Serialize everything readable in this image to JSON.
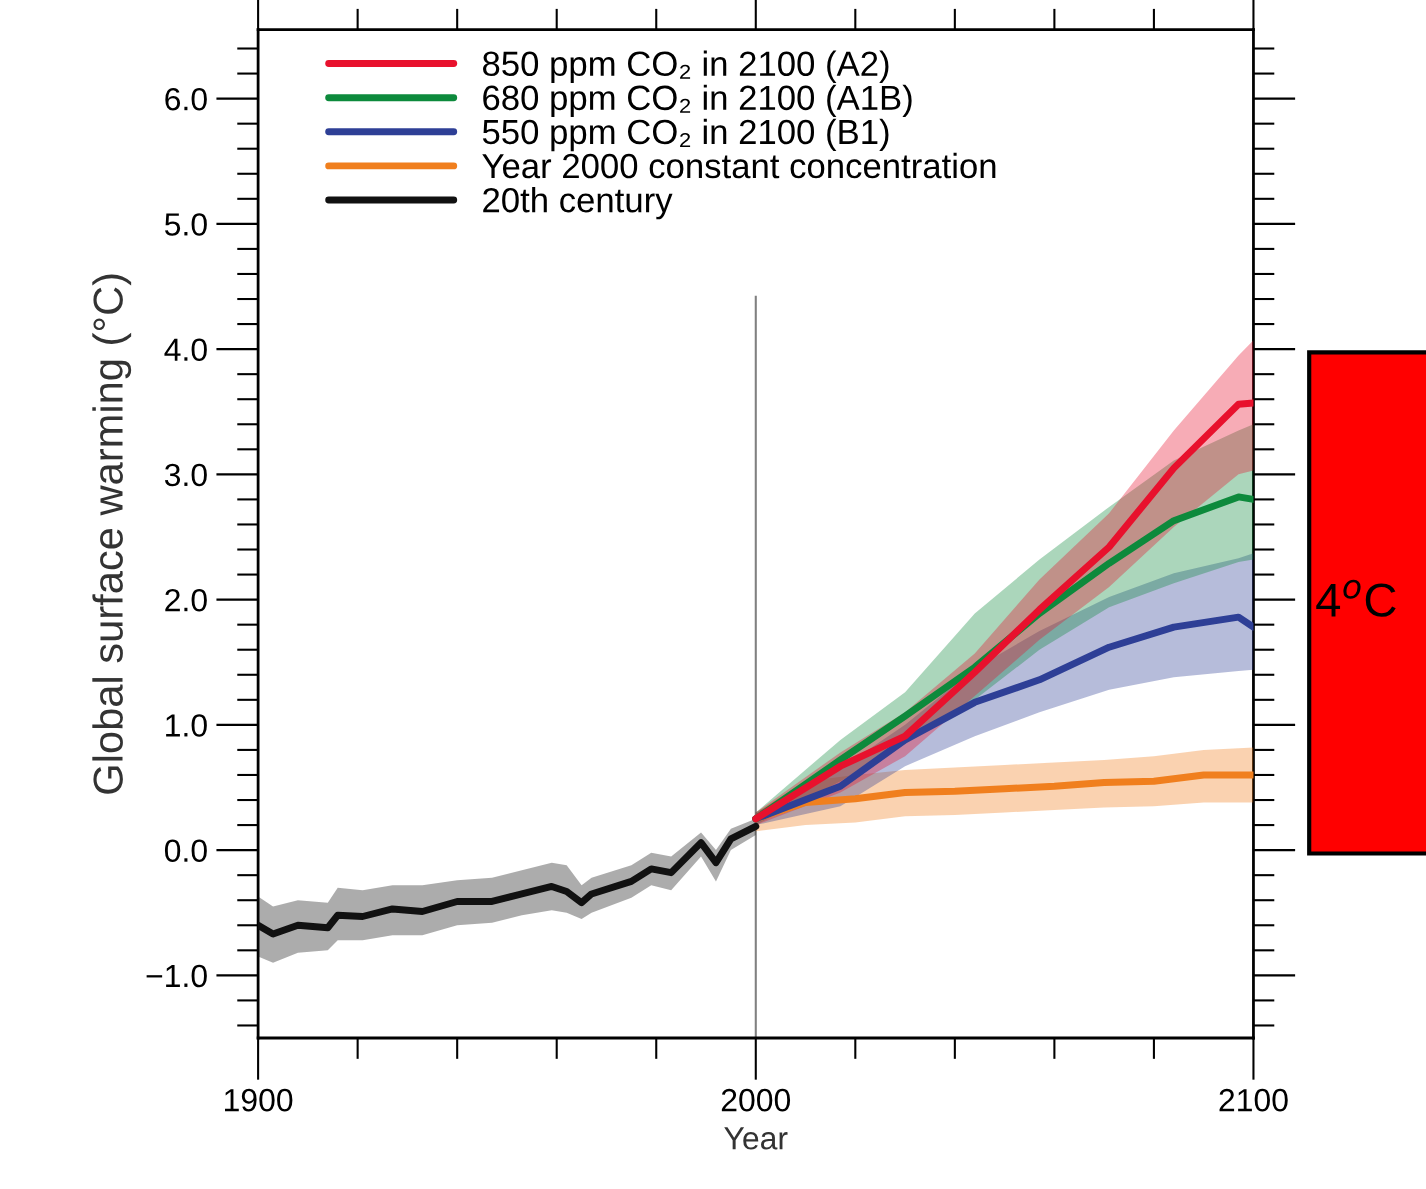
{
  "chart_data": {
    "type": "line",
    "xlabel": "Year",
    "ylabel": "Global surface warming (°C)",
    "xlim": [
      1900,
      2100
    ],
    "ylim": [
      -1.5,
      6.55
    ],
    "xticks": [
      1900,
      2000,
      2100
    ],
    "yticks": [
      {
        "value": -1.0,
        "label": "−1.0"
      },
      {
        "value": 0.0,
        "label": "0.0"
      },
      {
        "value": 1.0,
        "label": "1.0"
      },
      {
        "value": 2.0,
        "label": "2.0"
      },
      {
        "value": 3.0,
        "label": "3.0"
      },
      {
        "value": 4.0,
        "label": "4.0"
      },
      {
        "value": 5.0,
        "label": "5.0"
      },
      {
        "value": 6.0,
        "label": "6.0"
      }
    ],
    "grid": false,
    "legend": "top left",
    "marker": "none",
    "line_style": "solid",
    "series": [
      {
        "name": "850 ppm CO₂ in 2100 (A2)",
        "color": "#e8112d",
        "x": [
          2000,
          2017,
          2030,
          2044,
          2057,
          2071,
          2084,
          2097,
          2100
        ],
        "values": [
          0.25,
          0.67,
          0.91,
          1.42,
          1.92,
          2.42,
          3.05,
          3.56,
          3.57
        ],
        "lower": [
          0.2,
          0.46,
          0.75,
          1.23,
          1.68,
          2.1,
          2.58,
          3.0,
          3.03
        ],
        "upper": [
          0.3,
          0.78,
          1.1,
          1.57,
          2.16,
          2.69,
          3.35,
          3.95,
          4.07
        ]
      },
      {
        "name": "680 ppm CO₂ in 2100 (A1B)",
        "color": "#0d8a3c",
        "x": [
          2000,
          2017,
          2030,
          2044,
          2057,
          2071,
          2084,
          2097,
          2100
        ],
        "values": [
          0.25,
          0.72,
          1.07,
          1.46,
          1.89,
          2.29,
          2.63,
          2.82,
          2.8
        ],
        "lower": [
          0.2,
          0.55,
          0.85,
          1.2,
          1.6,
          1.94,
          2.13,
          2.3,
          2.32
        ],
        "upper": [
          0.3,
          0.88,
          1.26,
          1.89,
          2.32,
          2.74,
          3.11,
          3.35,
          3.4
        ]
      },
      {
        "name": "550 ppm CO₂ in 2100 (B1)",
        "color": "#2e3f96",
        "x": [
          2000,
          2017,
          2030,
          2044,
          2057,
          2071,
          2084,
          2097,
          2100
        ],
        "values": [
          0.25,
          0.51,
          0.88,
          1.18,
          1.36,
          1.62,
          1.78,
          1.86,
          1.78
        ],
        "lower": [
          0.2,
          0.35,
          0.67,
          0.91,
          1.1,
          1.28,
          1.38,
          1.43,
          1.44
        ],
        "upper": [
          0.3,
          0.65,
          1.0,
          1.45,
          1.75,
          2.02,
          2.21,
          2.33,
          2.37
        ]
      },
      {
        "name": "Year 2000 constant concentration",
        "color": "#f07f1e",
        "x": [
          2000,
          2010,
          2020,
          2030,
          2040,
          2050,
          2060,
          2070,
          2080,
          2090,
          2100
        ],
        "values": [
          0.25,
          0.38,
          0.41,
          0.46,
          0.47,
          0.49,
          0.51,
          0.54,
          0.55,
          0.6,
          0.6
        ],
        "lower": [
          0.15,
          0.2,
          0.22,
          0.27,
          0.28,
          0.3,
          0.32,
          0.34,
          0.35,
          0.38,
          0.38
        ],
        "upper": [
          0.3,
          0.55,
          0.6,
          0.64,
          0.66,
          0.68,
          0.7,
          0.72,
          0.75,
          0.8,
          0.82
        ]
      },
      {
        "name": "20th century",
        "color": "#111111",
        "x": [
          1900,
          1903,
          1908,
          1914,
          1916,
          1921,
          1927,
          1933,
          1940,
          1947,
          1953,
          1959,
          1962,
          1965,
          1967,
          1975,
          1979,
          1983,
          1989,
          1992,
          1995,
          2000
        ],
        "values": [
          -0.6,
          -0.67,
          -0.6,
          -0.62,
          -0.52,
          -0.53,
          -0.47,
          -0.49,
          -0.41,
          -0.41,
          -0.35,
          -0.29,
          -0.33,
          -0.42,
          -0.35,
          -0.25,
          -0.15,
          -0.18,
          0.06,
          -0.1,
          0.09,
          0.19
        ],
        "lower": [
          -0.85,
          -0.9,
          -0.82,
          -0.8,
          -0.72,
          -0.72,
          -0.68,
          -0.68,
          -0.6,
          -0.58,
          -0.52,
          -0.48,
          -0.5,
          -0.55,
          -0.5,
          -0.38,
          -0.28,
          -0.32,
          -0.05,
          -0.25,
          0.0,
          0.12
        ],
        "upper": [
          -0.37,
          -0.45,
          -0.4,
          -0.42,
          -0.3,
          -0.32,
          -0.28,
          -0.28,
          -0.24,
          -0.22,
          -0.16,
          -0.1,
          -0.12,
          -0.28,
          -0.22,
          -0.12,
          -0.02,
          -0.05,
          0.14,
          0.0,
          0.17,
          0.25
        ]
      }
    ],
    "ref_lines": [
      {
        "axis": "x",
        "value": 2000,
        "color": "#808080",
        "line_style": "solid"
      }
    ],
    "annotations": [
      "4$^{o}$C"
    ]
  }
}
